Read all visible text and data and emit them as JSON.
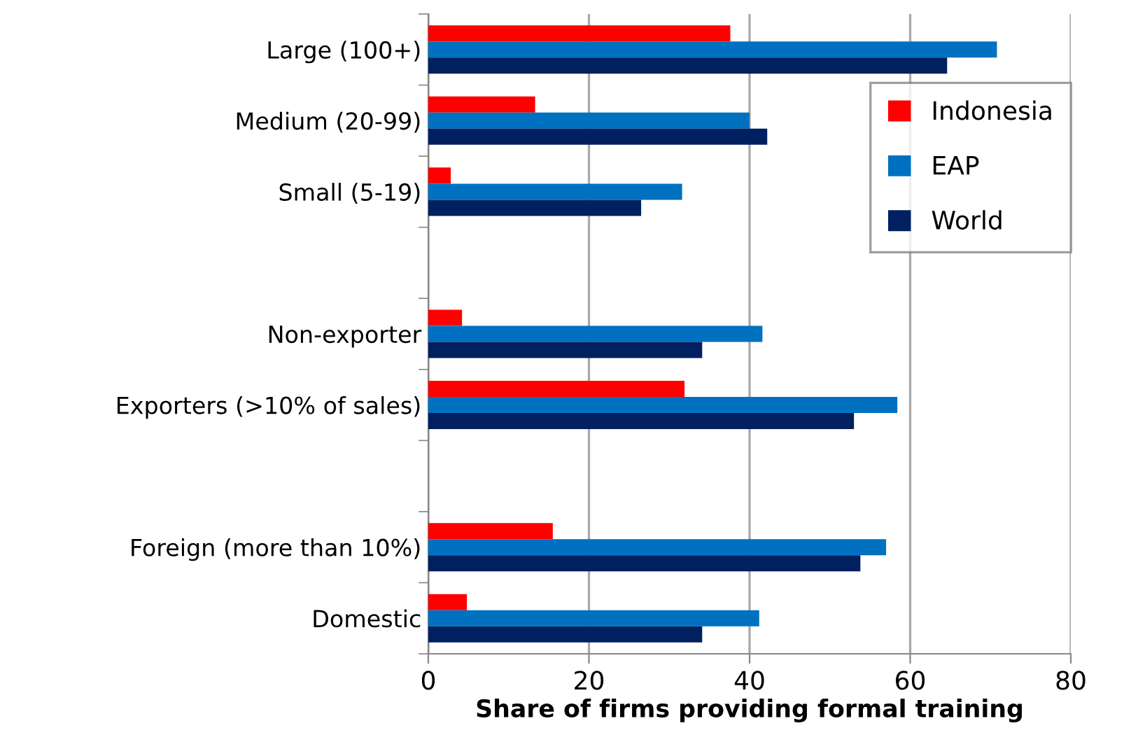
{
  "chart_data": {
    "type": "bar",
    "orientation": "horizontal",
    "xlabel": "Share of firms providing formal training",
    "categories": [
      "Large (100+)",
      "Medium (20-99)",
      "Small (5-19)",
      null,
      "Non-exporter",
      "Exporters (>10% of sales)",
      null,
      "Foreign (more than 10%)",
      "Domestic"
    ],
    "series": [
      {
        "name": "Indonesia",
        "color": "#ff0000",
        "values": [
          37.6,
          13.3,
          2.8,
          null,
          4.2,
          31.9,
          null,
          15.5,
          4.8
        ]
      },
      {
        "name": "EAP",
        "color": "#0070c0",
        "values": [
          70.8,
          40.0,
          31.6,
          null,
          41.6,
          58.4,
          null,
          57.0,
          41.2
        ]
      },
      {
        "name": "World",
        "color": "#002060",
        "values": [
          64.6,
          42.2,
          26.5,
          null,
          34.1,
          53.0,
          null,
          53.8,
          34.1
        ]
      }
    ],
    "xlim": [
      0,
      80
    ],
    "xticks": [
      0,
      20,
      40,
      60,
      80
    ],
    "grid": "x",
    "legend": "right"
  }
}
